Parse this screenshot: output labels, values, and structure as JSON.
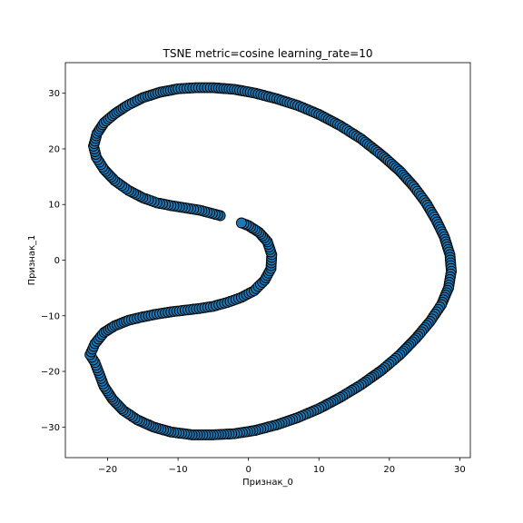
{
  "chart_data": {
    "type": "scatter",
    "title": "TSNE metric=cosine learning_rate=10",
    "xlabel": "Признак_0",
    "ylabel": "Признак_1",
    "xlim": [
      -26,
      31.5
    ],
    "ylim": [
      -35.5,
      35.5
    ],
    "xticks": [
      -20,
      -10,
      0,
      10,
      20,
      30
    ],
    "yticks": [
      -30,
      -20,
      -10,
      0,
      10,
      20,
      30
    ],
    "grid": false,
    "marker_color": "#1f77b4",
    "marker_edge_color": "#000000",
    "series": [
      {
        "points": [
          [
            -4,
            8
          ],
          [
            -5.5,
            8.5
          ],
          [
            -7,
            9
          ],
          [
            -9,
            9.4
          ],
          [
            -11,
            9.8
          ],
          [
            -13,
            10.3
          ],
          [
            -15,
            11.2
          ],
          [
            -17,
            12.5
          ],
          [
            -19,
            14.3
          ],
          [
            -20.5,
            16.3
          ],
          [
            -21.6,
            18.5
          ],
          [
            -22,
            20.5
          ],
          [
            -21.5,
            22.8
          ],
          [
            -20.5,
            24.7
          ],
          [
            -19,
            26.3
          ],
          [
            -17.2,
            27.8
          ],
          [
            -15,
            29.2
          ],
          [
            -12.5,
            30.2
          ],
          [
            -10,
            30.8
          ],
          [
            -7.5,
            31
          ],
          [
            -5,
            31
          ],
          [
            -2,
            30.7
          ],
          [
            1,
            30
          ],
          [
            4,
            29
          ],
          [
            7,
            27.8
          ],
          [
            10,
            26.2
          ],
          [
            13,
            24.2
          ],
          [
            16,
            21.8
          ],
          [
            19,
            18.8
          ],
          [
            21.5,
            16
          ],
          [
            23.5,
            13.2
          ],
          [
            25.2,
            10.3
          ],
          [
            26.6,
            7.3
          ],
          [
            27.8,
            4.2
          ],
          [
            28.6,
            1
          ],
          [
            28.8,
            -2
          ],
          [
            28.4,
            -5
          ],
          [
            27.4,
            -8
          ],
          [
            25.8,
            -11
          ],
          [
            23.8,
            -14
          ],
          [
            21.5,
            -17
          ],
          [
            19,
            -19.7
          ],
          [
            16,
            -22.4
          ],
          [
            13,
            -24.7
          ],
          [
            10,
            -26.7
          ],
          [
            7,
            -28.3
          ],
          [
            4,
            -29.6
          ],
          [
            1,
            -30.6
          ],
          [
            -2,
            -31.2
          ],
          [
            -5,
            -31.4
          ],
          [
            -8,
            -31.4
          ],
          [
            -11,
            -30.9
          ],
          [
            -13.5,
            -30
          ],
          [
            -15.8,
            -28.7
          ],
          [
            -17.8,
            -27
          ],
          [
            -19.3,
            -25
          ],
          [
            -20.5,
            -22.7
          ],
          [
            -21.8,
            -18.4
          ],
          [
            -22.5,
            -17
          ],
          [
            -21.8,
            -15
          ],
          [
            -20.5,
            -13
          ],
          [
            -19,
            -11.8
          ],
          [
            -17,
            -10.8
          ],
          [
            -15,
            -10.2
          ],
          [
            -13,
            -9.7
          ],
          [
            -11,
            -9.3
          ],
          [
            -9,
            -9
          ],
          [
            -7,
            -8.7
          ],
          [
            -5,
            -8.3
          ],
          [
            -3,
            -7.6
          ],
          [
            -1,
            -6.7
          ],
          [
            0.8,
            -5.5
          ],
          [
            2.3,
            -3.6
          ],
          [
            3.2,
            -1.5
          ],
          [
            3.3,
            1
          ],
          [
            2.7,
            3.3
          ],
          [
            1.5,
            5
          ],
          [
            0,
            6.2
          ],
          [
            -1,
            6.7
          ]
        ]
      }
    ]
  }
}
